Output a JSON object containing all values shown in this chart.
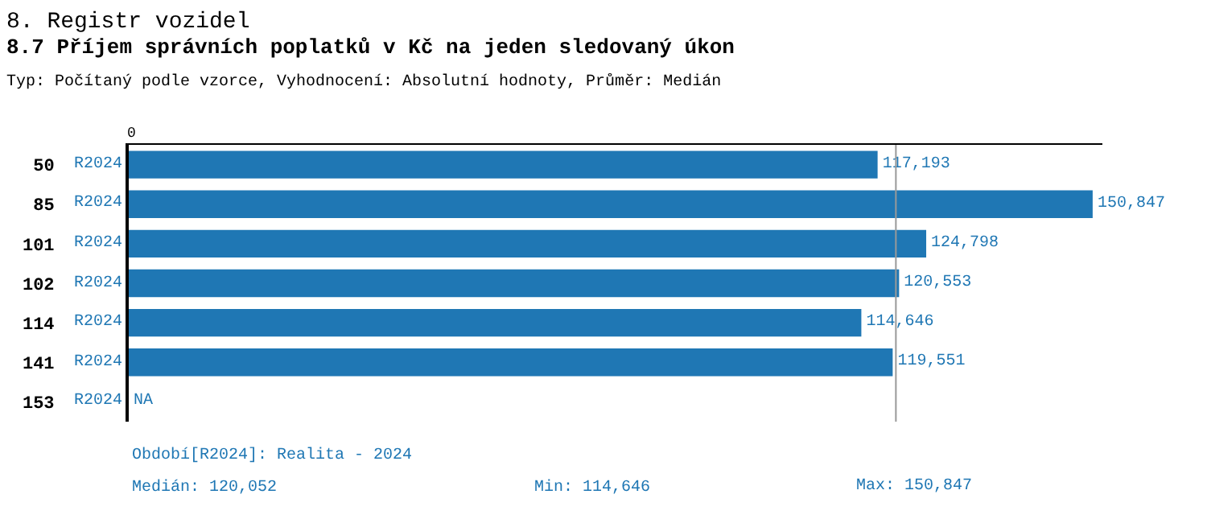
{
  "chart_data": {
    "type": "bar",
    "orientation": "horizontal",
    "title": "8. Registr vozidel",
    "subtitle": "8.7 Příjem správních poplatků v Kč na jeden sledovaný úkon",
    "annotations": [
      "0",
      "Typ: Počítaný podle vzorce, Vyhodnocení: Absolutní hodnoty, Průměr: Medián",
      "Období[R2024]: Realita - 2024",
      "Medián: 120,052",
      "Min: 114,646",
      "Max: 150,847"
    ],
    "categories": [
      "50",
      "85",
      "101",
      "102",
      "114",
      "141",
      "153"
    ],
    "series": [
      {
        "name": "R2024",
        "color": "#1f77b4",
        "values": [
          117193,
          150847,
          124798,
          120553,
          114646,
          119551,
          null
        ],
        "value_labels": [
          "117,193",
          "150,847",
          "124,798",
          "120,553",
          "114,646",
          "119,551",
          "NA"
        ]
      }
    ],
    "ref_lines": [
      {
        "axis": "x",
        "value": 120052,
        "color": "#999999"
      }
    ],
    "legend": false
  }
}
